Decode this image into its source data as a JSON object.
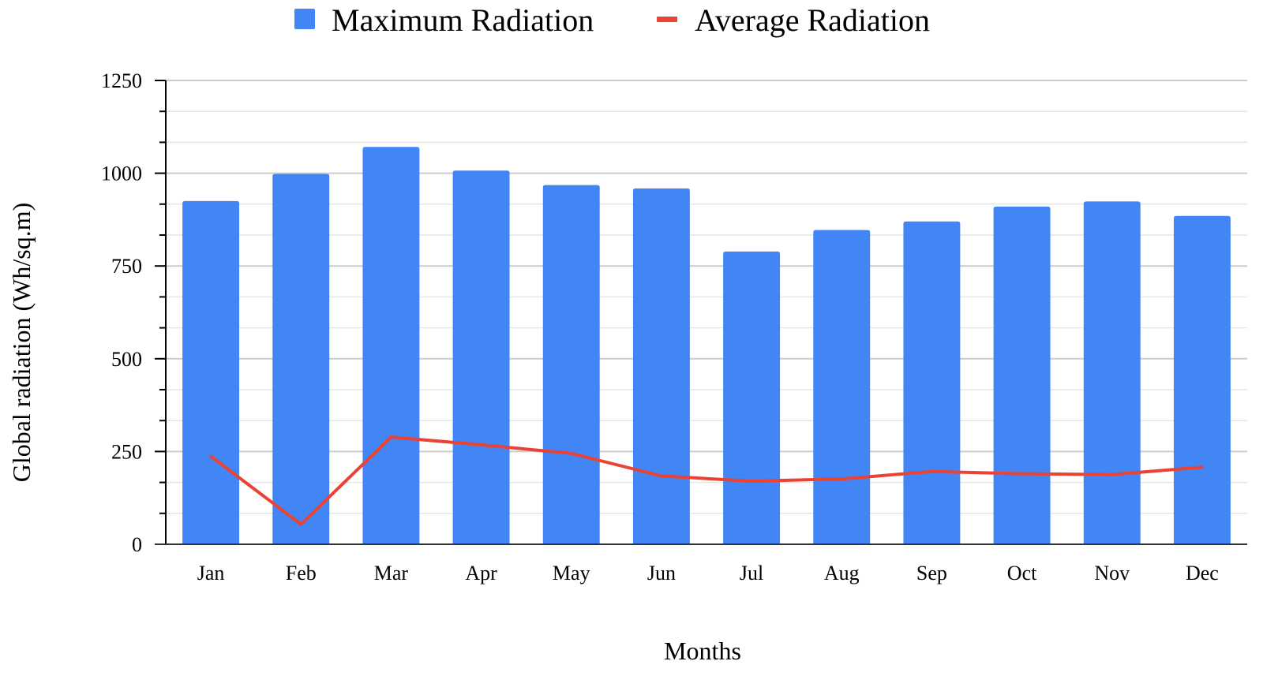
{
  "chart_data": {
    "type": "bar",
    "categories": [
      "Jan",
      "Feb",
      "Mar",
      "Apr",
      "May",
      "Jun",
      "Jul",
      "Aug",
      "Sep",
      "Oct",
      "Nov",
      "Dec"
    ],
    "series": [
      {
        "name": "Maximum Radiation",
        "kind": "bar",
        "color": "#4285f4",
        "values": [
          925,
          998,
          1071,
          1007,
          968,
          959,
          789,
          847,
          870,
          910,
          924,
          885
        ]
      },
      {
        "name": "Average Radiation",
        "kind": "line",
        "color": "#ea4335",
        "values": [
          237,
          54,
          289,
          268,
          245,
          184,
          170,
          176,
          196,
          190,
          188,
          208
        ]
      }
    ],
    "xlabel": "Months",
    "ylabel": "Global radiation (Wh/sq.m)",
    "ylim": [
      0,
      1250
    ],
    "yticks": [
      0,
      250,
      500,
      750,
      1000,
      1250
    ],
    "ytick_labels": [
      "0",
      "250",
      "500",
      "750",
      "1000",
      "1250"
    ],
    "minor_gridlines": true,
    "legend_position": "top-center"
  }
}
